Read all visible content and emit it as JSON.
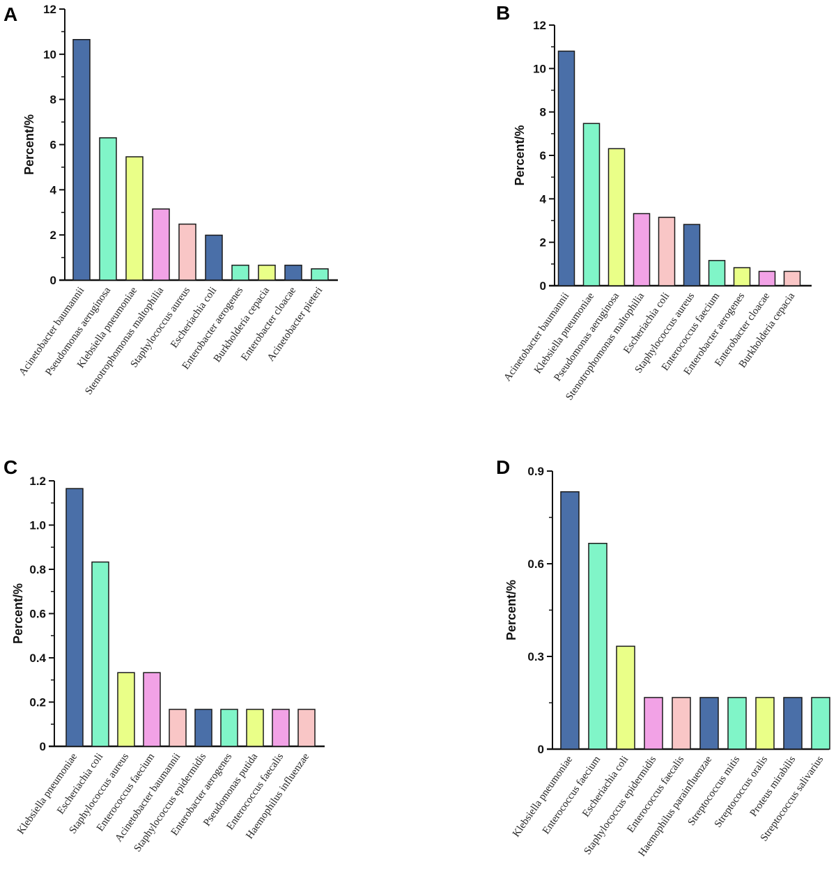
{
  "colors": {
    "blue": "#4a6fa8",
    "green": "#80f5c8",
    "yellow": "#eaff88",
    "pink": "#f2a2e6",
    "salmon": "#f9c6c6"
  },
  "chart_data": [
    {
      "panel": "A",
      "type": "bar",
      "ylabel": "Percent/%",
      "ylim": [
        0,
        12
      ],
      "yticks": [
        0,
        2,
        4,
        6,
        8,
        10,
        12
      ],
      "categories": [
        "Acinetobacter baumannii",
        "Pseudomonas aeruginosa",
        "Klebsiella pneumoniae",
        "Stenotrophomonas maltophilia",
        "Staphylococcus aureus",
        "Escheriachia coli",
        "Enterobacter aerogenes",
        "Burkholderia cepacia",
        "Enterobacter cloacae",
        "Acinetobacter pieteri"
      ],
      "values": [
        10.65,
        6.3,
        5.46,
        3.15,
        2.48,
        1.99,
        0.66,
        0.66,
        0.66,
        0.5
      ],
      "bar_colors": [
        "blue",
        "green",
        "yellow",
        "pink",
        "salmon",
        "blue",
        "green",
        "yellow",
        "blue",
        "green"
      ]
    },
    {
      "panel": "B",
      "type": "bar",
      "ylabel": "Percent/%",
      "ylim": [
        0,
        12
      ],
      "yticks": [
        0,
        2,
        4,
        6,
        8,
        10,
        12
      ],
      "categories": [
        "Acinetobacter baumannii",
        "Klebsiella pneumoniae",
        "Pseudomonas aeruginosa",
        "Stenotrophomonas maltophilia",
        "Escheriachia coli",
        "Staphylococcus aureus",
        "Enterococcus faecium",
        "Enterobacter aerogenes",
        "Enterobacter cloacae",
        "Burkholderia cepacia"
      ],
      "values": [
        10.8,
        7.47,
        6.31,
        3.32,
        3.15,
        2.82,
        1.16,
        0.83,
        0.66,
        0.66
      ],
      "bar_colors": [
        "blue",
        "green",
        "yellow",
        "pink",
        "salmon",
        "blue",
        "green",
        "yellow",
        "pink",
        "salmon"
      ]
    },
    {
      "panel": "C",
      "type": "bar",
      "ylabel": "Percent/%",
      "ylim": [
        0,
        1.2
      ],
      "yticks": [
        "0",
        "0.2",
        "0.4",
        "0.6",
        "0.8",
        "1.0",
        "1.2"
      ],
      "categories": [
        "Klebsiella pneumoniae",
        "Escheriachia coli",
        "Staphylococcus aureus",
        "Enterococcus faecium",
        "Acinetobacter baumannii",
        "Staphylococcus epidermidis",
        "Enterobacter aerogenes",
        "Pseudomonas putida",
        "Enterococcus faecalis",
        "Haemophilus influenzae"
      ],
      "values": [
        1.165,
        0.833,
        0.333,
        0.333,
        0.167,
        0.167,
        0.167,
        0.167,
        0.167,
        0.167
      ],
      "bar_colors": [
        "blue",
        "green",
        "yellow",
        "pink",
        "salmon",
        "blue",
        "green",
        "yellow",
        "pink",
        "salmon"
      ]
    },
    {
      "panel": "D",
      "type": "bar",
      "ylabel": "Percent/%",
      "ylim": [
        0,
        0.9
      ],
      "yticks": [
        "0",
        "0.3",
        "0.6",
        "0.9"
      ],
      "categories": [
        "Klebsiella pneumoniae",
        "Enterococcus faecium",
        "Escheriachia coli",
        "Staphylococcus epidermidis",
        "Enterococcus faecalis",
        "Haemophilus parainfluenzae",
        "Streptococcus mitis",
        "Streptococcus oralis",
        "Proteus mirabilis",
        "Streptococcus salivarius"
      ],
      "values": [
        0.833,
        0.666,
        0.333,
        0.167,
        0.167,
        0.167,
        0.167,
        0.167,
        0.167,
        0.167
      ],
      "bar_colors": [
        "blue",
        "green",
        "yellow",
        "pink",
        "salmon",
        "blue",
        "green",
        "yellow",
        "blue",
        "green"
      ]
    }
  ]
}
